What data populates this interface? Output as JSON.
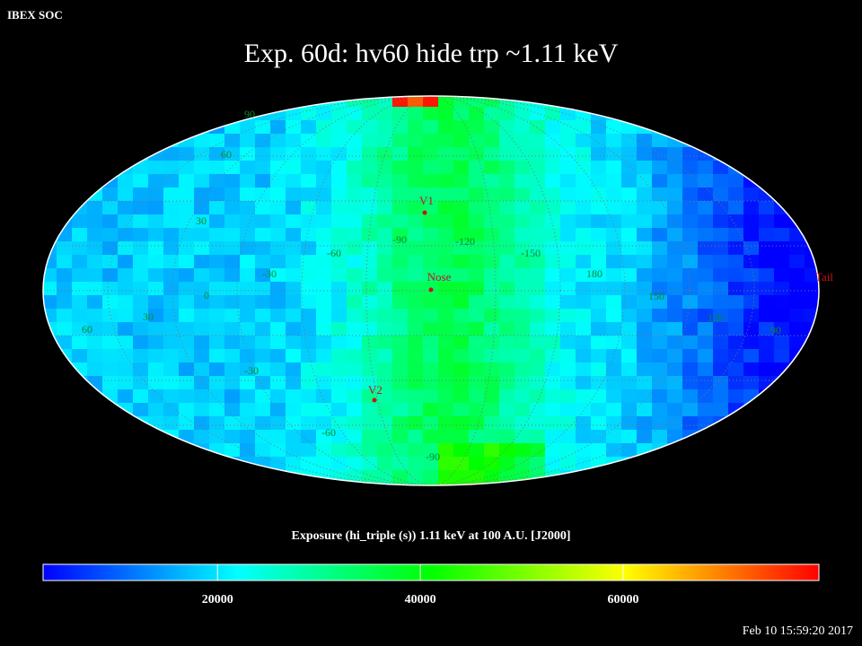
{
  "header": "IBEX SOC",
  "title": "Exp.   60d: hv60 hide trp ~1.11 keV",
  "map": {
    "grid_labels": [
      "90",
      "60",
      "30",
      "0",
      "-30",
      "-60",
      "-90",
      "-120",
      "-150",
      "180",
      "150",
      "120",
      "90",
      "30",
      "60",
      "-30",
      "-60",
      "-90"
    ],
    "markers": [
      {
        "label": "V1"
      },
      {
        "label": "Nose"
      },
      {
        "label": "V2"
      },
      {
        "label": "Tail"
      }
    ]
  },
  "colorbar": {
    "label": "Exposure (hi_triple (s))  1.11 keV at 100 A.U. [J2000]",
    "lim": [
      2800,
      79300
    ],
    "ticks": [
      20000,
      40000,
      60000
    ],
    "colors": [
      "#0000ff",
      "#00ffff",
      "#00ff00",
      "#ffff00",
      "#ff0000"
    ]
  },
  "timestamp": "Feb 10 15:59:20 2017"
}
